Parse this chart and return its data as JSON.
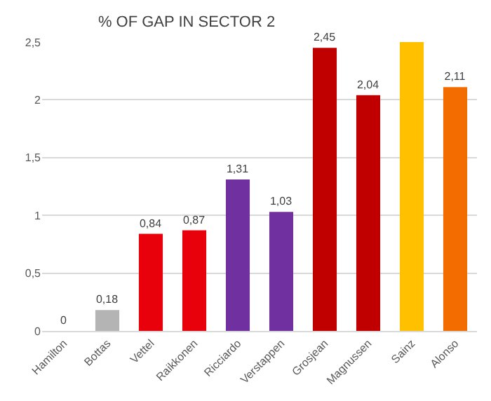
{
  "chart_data": {
    "type": "bar",
    "title": "% OF GAP IN SECTOR 2",
    "categories": [
      "Hamilton",
      "Bottas",
      "Vettel",
      "Raikkonen",
      "Ricciardo",
      "Verstappen",
      "Grosjean",
      "Magnussen",
      "Sainz",
      "Alonso"
    ],
    "values": [
      0,
      0.18,
      0.84,
      0.87,
      1.31,
      1.03,
      2.45,
      2.04,
      2.5,
      2.11
    ],
    "colors": [
      "#b4b4b4",
      "#b4b4b4",
      "#e8000b",
      "#e8000b",
      "#7030a0",
      "#7030a0",
      "#c00000",
      "#c00000",
      "#ffc000",
      "#f26c00"
    ],
    "value_labels": [
      "0",
      "0,18",
      "0,84",
      "0,87",
      "1,31",
      "1,03",
      "2,45",
      "2,04",
      null,
      "2,11"
    ],
    "ylim": [
      0,
      2.5
    ],
    "yticks": [
      {
        "value": 0,
        "label": "0"
      },
      {
        "value": 0.5,
        "label": "0,5"
      },
      {
        "value": 1,
        "label": "1"
      },
      {
        "value": 1.5,
        "label": "1,5"
      },
      {
        "value": 2,
        "label": "2"
      },
      {
        "value": 2.5,
        "label": "2,5"
      }
    ],
    "grid": "y"
  }
}
